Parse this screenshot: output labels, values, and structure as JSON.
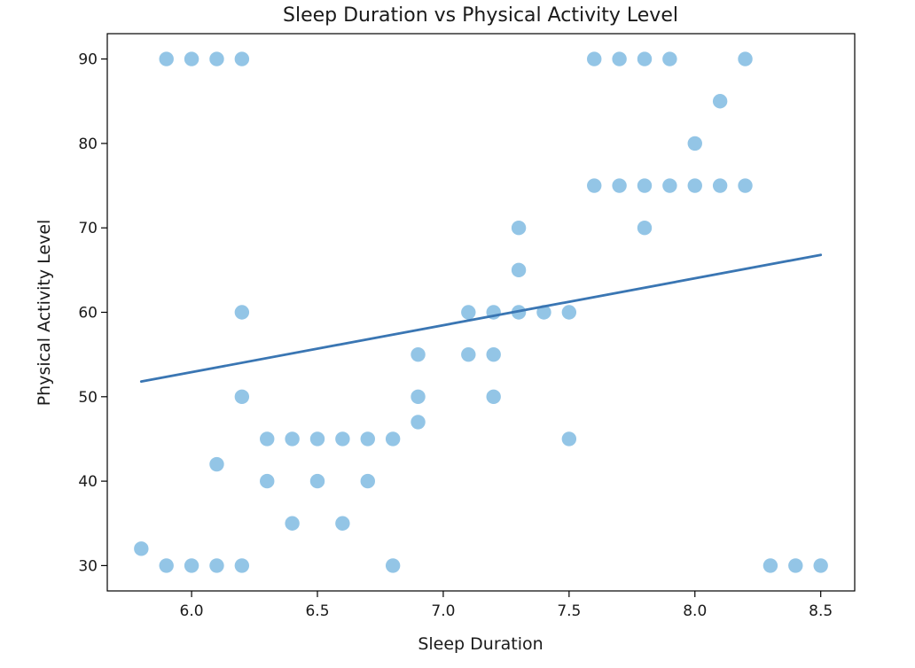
{
  "chart_data": {
    "type": "scatter",
    "title": "Sleep Duration vs Physical Activity Level",
    "xlabel": "Sleep Duration",
    "ylabel": "Physical Activity Level",
    "xlim": [
      5.665,
      8.635
    ],
    "ylim": [
      27,
      93
    ],
    "x_ticks": [
      6.0,
      6.5,
      7.0,
      7.5,
      8.0,
      8.5
    ],
    "x_tick_labels": [
      "6.0",
      "6.5",
      "7.0",
      "7.5",
      "8.0",
      "8.5"
    ],
    "y_ticks": [
      30,
      40,
      50,
      60,
      70,
      80,
      90
    ],
    "y_tick_labels": [
      "30",
      "40",
      "50",
      "60",
      "70",
      "80",
      "90"
    ],
    "grid": false,
    "marker_color": "#93c5e6",
    "line_color": "#3a76b3",
    "points": [
      [
        5.9,
        90
      ],
      [
        6.0,
        90
      ],
      [
        6.1,
        90
      ],
      [
        6.2,
        90
      ],
      [
        7.6,
        90
      ],
      [
        7.7,
        90
      ],
      [
        7.8,
        90
      ],
      [
        7.9,
        90
      ],
      [
        8.2,
        90
      ],
      [
        8.1,
        85
      ],
      [
        8.0,
        80
      ],
      [
        7.6,
        75
      ],
      [
        7.7,
        75
      ],
      [
        7.8,
        75
      ],
      [
        7.9,
        75
      ],
      [
        8.0,
        75
      ],
      [
        8.1,
        75
      ],
      [
        8.2,
        75
      ],
      [
        7.3,
        70
      ],
      [
        7.8,
        70
      ],
      [
        7.3,
        65
      ],
      [
        6.2,
        60
      ],
      [
        7.1,
        60
      ],
      [
        7.2,
        60
      ],
      [
        7.3,
        60
      ],
      [
        7.4,
        60
      ],
      [
        7.5,
        60
      ],
      [
        6.9,
        55
      ],
      [
        7.1,
        55
      ],
      [
        7.2,
        55
      ],
      [
        6.2,
        50
      ],
      [
        6.9,
        50
      ],
      [
        7.2,
        50
      ],
      [
        6.9,
        47
      ],
      [
        6.3,
        45
      ],
      [
        6.4,
        45
      ],
      [
        6.5,
        45
      ],
      [
        6.6,
        45
      ],
      [
        6.7,
        45
      ],
      [
        6.8,
        45
      ],
      [
        7.5,
        45
      ],
      [
        6.1,
        42
      ],
      [
        6.3,
        40
      ],
      [
        6.5,
        40
      ],
      [
        6.7,
        40
      ],
      [
        6.4,
        35
      ],
      [
        6.6,
        35
      ],
      [
        5.8,
        32
      ],
      [
        5.9,
        30
      ],
      [
        6.0,
        30
      ],
      [
        6.1,
        30
      ],
      [
        6.2,
        30
      ],
      [
        6.8,
        30
      ],
      [
        8.3,
        30
      ],
      [
        8.4,
        30
      ],
      [
        8.5,
        30
      ]
    ],
    "trend_line": {
      "x": [
        5.8,
        8.5
      ],
      "y": [
        51.8,
        66.8
      ]
    }
  }
}
